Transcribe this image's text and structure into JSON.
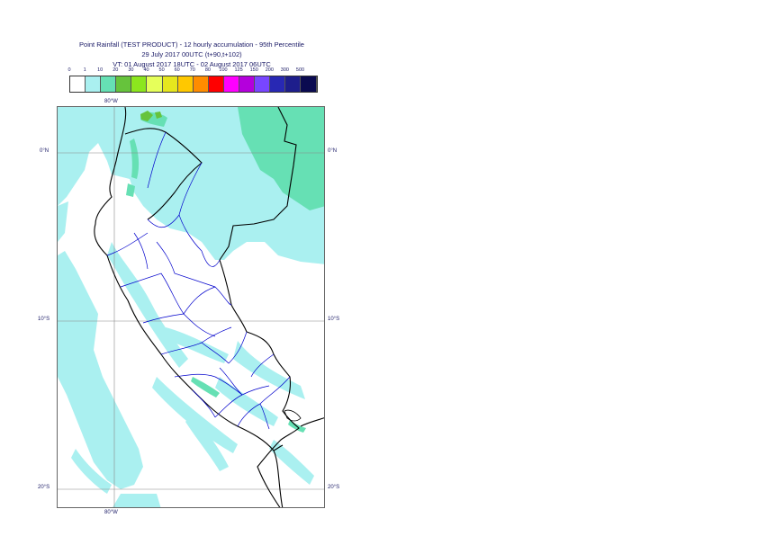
{
  "title": {
    "line1": "Point Rainfall (TEST PRODUCT) - 12 hourly accumulation - 95th Percentile",
    "line2": "29 July 2017 00UTC (t+90,t+102)",
    "line3": "VT: 01 August 2017 18UTC - 02 August 2017 06UTC"
  },
  "legend": {
    "thresholds": [
      "0",
      "1",
      "10",
      "20",
      "30",
      "40",
      "50",
      "60",
      "70",
      "80",
      "100",
      "125",
      "150",
      "200",
      "300",
      "500"
    ],
    "colors": [
      "#ffffff",
      "#aaf0f0",
      "#66e0b4",
      "#66c33c",
      "#8ce61e",
      "#e6ff5a",
      "#e6e61e",
      "#ffc800",
      "#ff8c00",
      "#ff0000",
      "#ff00ff",
      "#b400dc",
      "#7846ff",
      "#2828b4",
      "#1e1e8c",
      "#0a0a50"
    ]
  },
  "axes": {
    "lon_top": "80°W",
    "lon_bottom": "80°W",
    "lat_0_left": "0°N",
    "lat_0_right": "0°N",
    "lat_10_left": "10°S",
    "lat_10_right": "10°S",
    "lat_20_left": "20°S",
    "lat_20_right": "20°S"
  },
  "colors": {
    "light_cyan": "#aaf0f0",
    "mint": "#66e0b4",
    "green": "#66c33c",
    "border_dark": "#000000",
    "region_blue": "#0000cc"
  }
}
